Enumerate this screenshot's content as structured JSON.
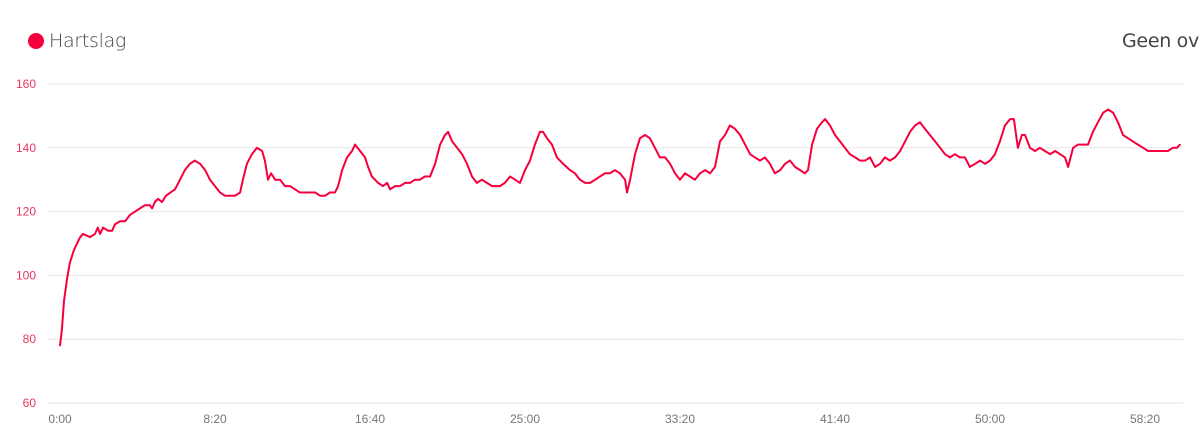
{
  "header": {
    "legend_label": "Hartslag",
    "right_text": "Geen over"
  },
  "colors": {
    "series": "#f5003d",
    "grid": "#e6e6e6",
    "ytick": "#e8365d",
    "xtick": "#777777"
  },
  "chart_data": {
    "type": "line",
    "title": "",
    "xlabel": "",
    "ylabel": "",
    "ylim": [
      60,
      160
    ],
    "xlim": [
      "0:00",
      "60:13"
    ],
    "grid": true,
    "legend": "top-left",
    "yticks": [
      "60",
      "80",
      "100",
      "120",
      "140",
      "160"
    ],
    "xticks": [
      "0:00",
      "8:20",
      "16:40",
      "25:00",
      "33:20",
      "41:40",
      "50:00",
      "58:20"
    ],
    "series": [
      {
        "name": "Hartslag",
        "points": [
          [
            "0:00",
            78
          ],
          [
            "0:06",
            83
          ],
          [
            "0:13",
            92
          ],
          [
            "0:23",
            99
          ],
          [
            "0:32",
            104
          ],
          [
            "0:45",
            108
          ],
          [
            "0:55",
            110
          ],
          [
            "1:05",
            112
          ],
          [
            "1:14",
            113
          ],
          [
            "1:37",
            112
          ],
          [
            "1:53",
            113
          ],
          [
            "2:02",
            115
          ],
          [
            "2:09",
            113
          ],
          [
            "2:19",
            115
          ],
          [
            "2:35",
            114
          ],
          [
            "2:48",
            114
          ],
          [
            "2:57",
            116
          ],
          [
            "3:14",
            117
          ],
          [
            "3:30",
            117
          ],
          [
            "3:46",
            119
          ],
          [
            "4:02",
            120
          ],
          [
            "4:18",
            121
          ],
          [
            "4:34",
            122
          ],
          [
            "4:50",
            122
          ],
          [
            "4:57",
            121
          ],
          [
            "5:06",
            123
          ],
          [
            "5:16",
            124
          ],
          [
            "5:29",
            123
          ],
          [
            "5:42",
            125
          ],
          [
            "6:11",
            127
          ],
          [
            "6:27",
            130
          ],
          [
            "6:43",
            133
          ],
          [
            "6:59",
            135
          ],
          [
            "7:15",
            136
          ],
          [
            "7:32",
            135
          ],
          [
            "7:48",
            133
          ],
          [
            "8:04",
            130
          ],
          [
            "8:20",
            128
          ],
          [
            "8:36",
            126
          ],
          [
            "8:52",
            125
          ],
          [
            "9:08",
            125
          ],
          [
            "9:25",
            125
          ],
          [
            "9:41",
            126
          ],
          [
            "9:50",
            130
          ],
          [
            "10:03",
            135
          ],
          [
            "10:19",
            138
          ],
          [
            "10:35",
            140
          ],
          [
            "10:52",
            139
          ],
          [
            "11:01",
            136
          ],
          [
            "11:11",
            130
          ],
          [
            "11:21",
            132
          ],
          [
            "11:34",
            130
          ],
          [
            "11:50",
            130
          ],
          [
            "12:06",
            128
          ],
          [
            "12:22",
            128
          ],
          [
            "12:38",
            127
          ],
          [
            "12:54",
            126
          ],
          [
            "13:10",
            126
          ],
          [
            "13:26",
            126
          ],
          [
            "13:43",
            126
          ],
          [
            "13:59",
            125
          ],
          [
            "14:15",
            125
          ],
          [
            "14:31",
            126
          ],
          [
            "14:47",
            126
          ],
          [
            "14:57",
            128
          ],
          [
            "15:10",
            133
          ],
          [
            "15:26",
            137
          ],
          [
            "15:42",
            139
          ],
          [
            "15:52",
            141
          ],
          [
            "16:08",
            139
          ],
          [
            "16:24",
            137
          ],
          [
            "16:34",
            134
          ],
          [
            "16:46",
            131
          ],
          [
            "17:06",
            129
          ],
          [
            "17:22",
            128
          ],
          [
            "17:35",
            129
          ],
          [
            "17:45",
            127
          ],
          [
            "18:01",
            128
          ],
          [
            "18:17",
            128
          ],
          [
            "18:33",
            129
          ],
          [
            "18:49",
            129
          ],
          [
            "19:05",
            130
          ],
          [
            "19:21",
            130
          ],
          [
            "19:37",
            131
          ],
          [
            "19:54",
            131
          ],
          [
            "20:10",
            135
          ],
          [
            "20:26",
            141
          ],
          [
            "20:42",
            144
          ],
          [
            "20:52",
            145
          ],
          [
            "21:05",
            142
          ],
          [
            "21:21",
            140
          ],
          [
            "21:37",
            138
          ],
          [
            "21:53",
            135
          ],
          [
            "22:09",
            131
          ],
          [
            "22:25",
            129
          ],
          [
            "22:41",
            130
          ],
          [
            "22:57",
            129
          ],
          [
            "23:14",
            128
          ],
          [
            "23:26",
            128
          ],
          [
            "23:39",
            128
          ],
          [
            "23:55",
            129
          ],
          [
            "24:12",
            131
          ],
          [
            "24:28",
            130
          ],
          [
            "24:44",
            129
          ],
          [
            "25:00",
            133
          ],
          [
            "25:16",
            136
          ],
          [
            "25:32",
            141
          ],
          [
            "25:48",
            145
          ],
          [
            "25:58",
            145
          ],
          [
            "26:11",
            143
          ],
          [
            "26:27",
            141
          ],
          [
            "26:43",
            137
          ],
          [
            "27:03",
            135
          ],
          [
            "27:25",
            133
          ],
          [
            "27:41",
            132
          ],
          [
            "27:57",
            130
          ],
          [
            "28:14",
            129
          ],
          [
            "28:30",
            129
          ],
          [
            "28:46",
            130
          ],
          [
            "29:02",
            131
          ],
          [
            "29:18",
            132
          ],
          [
            "29:34",
            132
          ],
          [
            "29:50",
            133
          ],
          [
            "30:06",
            132
          ],
          [
            "30:23",
            130
          ],
          [
            "30:29",
            126
          ],
          [
            "30:39",
            130
          ],
          [
            "30:55",
            138
          ],
          [
            "31:11",
            143
          ],
          [
            "31:27",
            144
          ],
          [
            "31:43",
            143
          ],
          [
            "31:59",
            140
          ],
          [
            "32:15",
            137
          ],
          [
            "32:32",
            137
          ],
          [
            "32:48",
            135
          ],
          [
            "33:04",
            132
          ],
          [
            "33:20",
            130
          ],
          [
            "33:36",
            132
          ],
          [
            "33:52",
            131
          ],
          [
            "34:08",
            130
          ],
          [
            "34:25",
            132
          ],
          [
            "34:41",
            133
          ],
          [
            "34:57",
            132
          ],
          [
            "35:13",
            134
          ],
          [
            "35:29",
            142
          ],
          [
            "35:45",
            144
          ],
          [
            "36:01",
            147
          ],
          [
            "36:17",
            146
          ],
          [
            "36:34",
            144
          ],
          [
            "36:50",
            141
          ],
          [
            "37:06",
            138
          ],
          [
            "37:22",
            137
          ],
          [
            "37:38",
            136
          ],
          [
            "37:54",
            137
          ],
          [
            "38:10",
            135
          ],
          [
            "38:26",
            132
          ],
          [
            "38:43",
            133
          ],
          [
            "38:59",
            135
          ],
          [
            "39:15",
            136
          ],
          [
            "39:31",
            134
          ],
          [
            "39:47",
            133
          ],
          [
            "40:03",
            132
          ],
          [
            "40:13",
            133
          ],
          [
            "40:26",
            141
          ],
          [
            "40:42",
            146
          ],
          [
            "40:58",
            148
          ],
          [
            "41:08",
            149
          ],
          [
            "41:24",
            147
          ],
          [
            "41:40",
            144
          ],
          [
            "41:56",
            142
          ],
          [
            "42:12",
            140
          ],
          [
            "42:28",
            138
          ],
          [
            "42:45",
            137
          ],
          [
            "43:01",
            136
          ],
          [
            "43:17",
            136
          ],
          [
            "43:33",
            137
          ],
          [
            "43:49",
            134
          ],
          [
            "44:05",
            135
          ],
          [
            "44:21",
            137
          ],
          [
            "44:37",
            136
          ],
          [
            "44:54",
            137
          ],
          [
            "45:10",
            139
          ],
          [
            "45:26",
            142
          ],
          [
            "45:42",
            145
          ],
          [
            "45:58",
            147
          ],
          [
            "46:14",
            148
          ],
          [
            "46:30",
            146
          ],
          [
            "46:46",
            144
          ],
          [
            "47:03",
            142
          ],
          [
            "47:19",
            140
          ],
          [
            "47:35",
            138
          ],
          [
            "47:51",
            137
          ],
          [
            "48:07",
            138
          ],
          [
            "48:23",
            137
          ],
          [
            "48:39",
            137
          ],
          [
            "48:55",
            134
          ],
          [
            "49:12",
            135
          ],
          [
            "49:28",
            136
          ],
          [
            "49:44",
            135
          ],
          [
            "50:00",
            136
          ],
          [
            "50:16",
            138
          ],
          [
            "50:32",
            142
          ],
          [
            "50:48",
            147
          ],
          [
            "51:05",
            149
          ],
          [
            "51:17",
            149
          ],
          [
            "51:30",
            140
          ],
          [
            "51:43",
            144
          ],
          [
            "51:53",
            144
          ],
          [
            "52:09",
            140
          ],
          [
            "52:25",
            139
          ],
          [
            "52:41",
            140
          ],
          [
            "52:57",
            139
          ],
          [
            "53:14",
            138
          ],
          [
            "53:30",
            139
          ],
          [
            "53:46",
            138
          ],
          [
            "54:02",
            137
          ],
          [
            "54:12",
            134
          ],
          [
            "54:28",
            140
          ],
          [
            "54:44",
            141
          ],
          [
            "55:00",
            141
          ],
          [
            "55:16",
            141
          ],
          [
            "55:32",
            145
          ],
          [
            "55:48",
            148
          ],
          [
            "56:05",
            151
          ],
          [
            "56:21",
            152
          ],
          [
            "56:37",
            151
          ],
          [
            "56:53",
            148
          ],
          [
            "57:09",
            144
          ],
          [
            "57:25",
            143
          ],
          [
            "57:41",
            142
          ],
          [
            "57:57",
            141
          ],
          [
            "58:14",
            140
          ],
          [
            "58:30",
            139
          ],
          [
            "58:46",
            139
          ],
          [
            "59:02",
            139
          ],
          [
            "59:18",
            139
          ],
          [
            "59:34",
            139
          ],
          [
            "59:50",
            140
          ],
          [
            "60:03",
            140
          ],
          [
            "60:13",
            141
          ]
        ]
      }
    ]
  }
}
